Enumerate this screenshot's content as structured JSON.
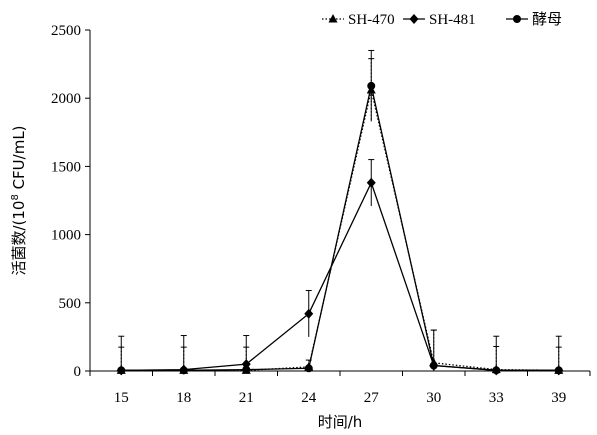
{
  "chart_data": {
    "type": "line",
    "xlabel": "时间/h",
    "ylabel_parts": {
      "before": "活菌数/(10",
      "superscript": "8",
      "after": " CFU/mL)"
    },
    "categories": [
      "15",
      "18",
      "21",
      "24",
      "27",
      "30",
      "33",
      "39"
    ],
    "ylim": [
      0,
      2500
    ],
    "yticks": [
      0,
      500,
      1000,
      1500,
      2000,
      2500
    ],
    "grid": false,
    "legend_position": "top-right",
    "series": [
      {
        "name": "SH-470",
        "marker": "triangle",
        "line": "dotted",
        "color": "#000000",
        "values": [
          5,
          5,
          5,
          30,
          2060,
          60,
          10,
          5
        ],
        "errors": [
          170,
          170,
          170,
          50,
          230,
          240,
          170,
          170
        ]
      },
      {
        "name": "SH-481",
        "marker": "diamond",
        "line": "solid",
        "color": "#000000",
        "values": [
          5,
          10,
          50,
          420,
          1380,
          40,
          5,
          5
        ],
        "errors": [
          250,
          250,
          210,
          170,
          170,
          260,
          250,
          250
        ]
      },
      {
        "name": "酵母",
        "marker": "circle",
        "line": "solid",
        "color": "#000000",
        "values": [
          5,
          5,
          10,
          20,
          2090,
          40,
          5,
          5
        ],
        "errors": [
          0,
          0,
          0,
          0,
          260,
          0,
          0,
          0
        ]
      }
    ]
  }
}
